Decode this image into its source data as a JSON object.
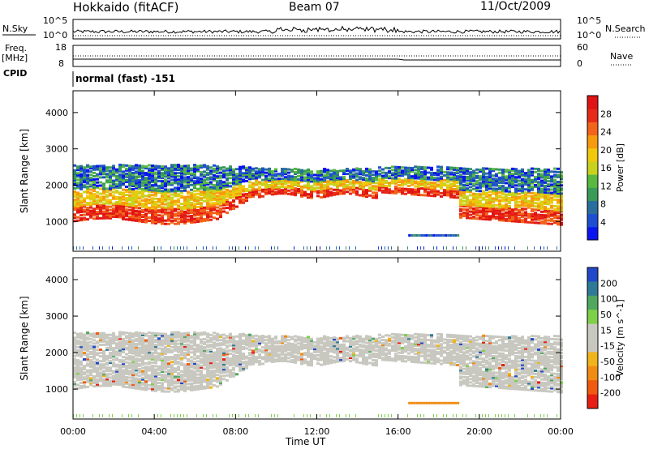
{
  "header": {
    "station": "Hokkaido (fitACF)",
    "beam": "Beam 07",
    "date": "11/Oct/2009"
  },
  "params": {
    "nsky_label": "N.Sky",
    "nsearch_label": "N.Search",
    "freq_label": "Freq.",
    "freq_unit": "[MHz]",
    "nave_label": "Nave",
    "cpid_label": "CPID",
    "cpid_value": "normal (fast) -151",
    "noise_ticks": [
      "10^5",
      "10^0"
    ],
    "freq_ticks": [
      "18",
      "8"
    ],
    "nave_ticks": [
      "60",
      "0"
    ]
  },
  "chart_data": [
    {
      "type": "heatmap",
      "name": "power",
      "ylabel": "Slant Range [km]",
      "yticks": [
        1000,
        2000,
        3000,
        4000
      ],
      "ylim": [
        180,
        4600
      ],
      "colorbar": {
        "label": "Power [dB]",
        "ticks": [
          "4",
          "8",
          "12",
          "16",
          "20",
          "24",
          "28"
        ],
        "colors": [
          "#0a14f0",
          "#1e4ed2",
          "#2a6e9e",
          "#3a9a58",
          "#58b840",
          "#c8d21e",
          "#f0c80c",
          "#f69a0e",
          "#f2641a",
          "#e82a18",
          "#e01414"
        ]
      },
      "features": [
        {
          "label": "main band",
          "start_hour": 0,
          "end_hour": 24,
          "range_km": [
            900,
            2600
          ]
        },
        {
          "label": "low band",
          "start_hour": 16.5,
          "end_hour": 19,
          "range_km": [
            580,
            650
          ]
        }
      ]
    },
    {
      "type": "heatmap",
      "name": "velocity",
      "ylabel": "Slant Range [km]",
      "yticks": [
        1000,
        2000,
        3000,
        4000
      ],
      "ylim": [
        180,
        4600
      ],
      "colorbar": {
        "label": "Velocity [m s^-1]",
        "ticks": [
          "200",
          "100",
          "50",
          "15",
          "-15",
          "-50",
          "-100",
          "-200"
        ],
        "colors": [
          "#2048c8",
          "#2e7a96",
          "#50a860",
          "#7ed048",
          "#c8c8c0",
          "#c8c8c0",
          "#f0b41c",
          "#f08c14",
          "#f05a10",
          "#e81e14"
        ]
      }
    }
  ],
  "xaxis": {
    "label": "Time UT",
    "ticks": [
      "00:00",
      "04:00",
      "08:00",
      "12:00",
      "16:00",
      "20:00",
      "00:00"
    ],
    "xlim_hours": [
      0,
      24
    ]
  }
}
